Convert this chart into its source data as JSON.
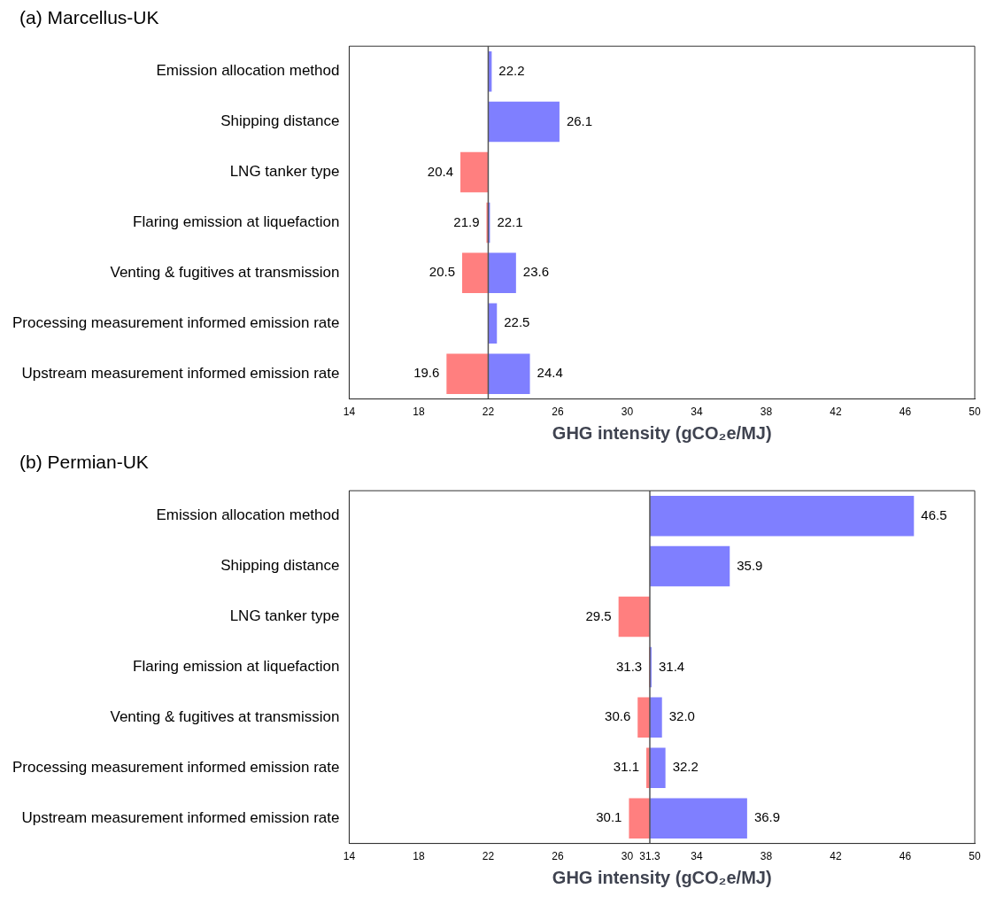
{
  "chart_data": [
    {
      "type": "bar",
      "orientation": "horizontal",
      "title": "(a) Marcellus-UK",
      "xlabel": "GHG intensity (gCO₂e/MJ)",
      "categories": [
        "Emission allocation method",
        "Shipping distance",
        "LNG tanker type",
        "Flaring emission at liquefaction",
        "Venting & fugitives at transmission",
        "Processing measurement informed emission rate",
        "Upstream measurement informed emission rate"
      ],
      "series": [
        {
          "color": "#ff7f7f",
          "base": [
            null,
            null,
            22,
            22,
            22,
            null,
            22
          ],
          "values": [
            null,
            null,
            -1.6,
            -0.1,
            -1.5,
            null,
            -2.4
          ],
          "value_labels": [
            null,
            null,
            "20.4",
            "21.9",
            "20.5",
            null,
            "19.6"
          ]
        },
        {
          "color": "#7f7fff",
          "base": [
            22,
            22,
            null,
            22,
            22,
            22,
            22
          ],
          "values": [
            0.2,
            4.1,
            null,
            0.1,
            1.6,
            0.5,
            2.4
          ],
          "value_labels": [
            "22.2",
            "26.1",
            null,
            "22.1",
            "23.6",
            "22.5",
            "24.4"
          ]
        }
      ],
      "xlim": [
        14,
        50
      ],
      "xticks": [
        14,
        18,
        22,
        26,
        30,
        34,
        38,
        42,
        46,
        50
      ],
      "ref_lines": [
        {
          "axis": "x",
          "value": 22,
          "color": "#555555"
        }
      ],
      "grid": false,
      "legend": false
    },
    {
      "type": "bar",
      "orientation": "horizontal",
      "title": "(b) Permian-UK",
      "xlabel": "GHG intensity (gCO₂e/MJ)",
      "categories": [
        "Emission allocation method",
        "Shipping distance",
        "LNG tanker type",
        "Flaring emission at liquefaction",
        "Venting & fugitives at transmission",
        "Processing measurement informed emission rate",
        "Upstream measurement informed emission rate"
      ],
      "series": [
        {
          "color": "#ff7f7f",
          "base": [
            null,
            null,
            31.3,
            31.3,
            31.3,
            31.3,
            31.3
          ],
          "values": [
            null,
            null,
            -1.8,
            -0.04,
            -0.7,
            -0.2,
            -1.2
          ],
          "value_labels": [
            null,
            null,
            "29.5",
            "31.3",
            "30.6",
            "31.1",
            "30.1"
          ]
        },
        {
          "color": "#7f7fff",
          "base": [
            31.3,
            31.3,
            null,
            31.3,
            31.3,
            31.3,
            31.3
          ],
          "values": [
            15.2,
            4.6,
            null,
            0.1,
            0.7,
            0.9,
            5.6
          ],
          "value_labels": [
            "46.5",
            "35.9",
            null,
            "31.4",
            "32.0",
            "32.2",
            "36.9"
          ]
        }
      ],
      "xlim": [
        14,
        50
      ],
      "xticks": [
        14,
        18,
        22,
        26,
        30,
        31.3,
        34,
        38,
        42,
        46,
        50
      ],
      "ref_lines": [
        {
          "axis": "x",
          "value": 31.3,
          "color": "#555555"
        }
      ],
      "grid": false,
      "legend": false
    }
  ]
}
